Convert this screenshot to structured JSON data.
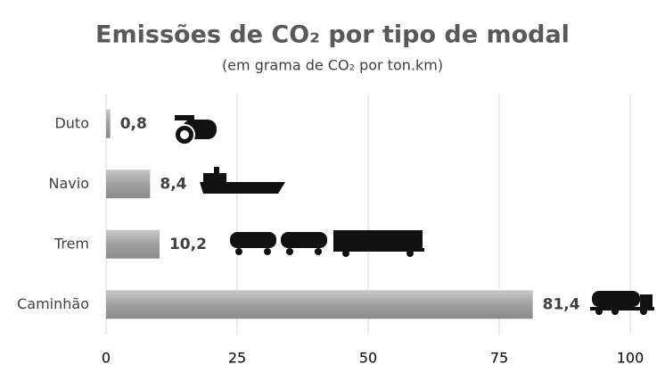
{
  "chart_data": {
    "type": "bar",
    "orientation": "horizontal",
    "title": "Emissões de CO₂ por tipo de modal",
    "subtitle": "(em grama de CO₂ por ton.km)",
    "categories": [
      "Duto",
      "Navio",
      "Trem",
      "Caminhão"
    ],
    "values": [
      0.8,
      8.4,
      10.2,
      81.4
    ],
    "value_labels": [
      "0,8",
      "8,4",
      "10,2",
      "81,4"
    ],
    "color": "#a6a6a6",
    "xlim": [
      0,
      100
    ],
    "xticks": [
      0,
      25,
      50,
      75,
      100
    ],
    "grid": true
  }
}
